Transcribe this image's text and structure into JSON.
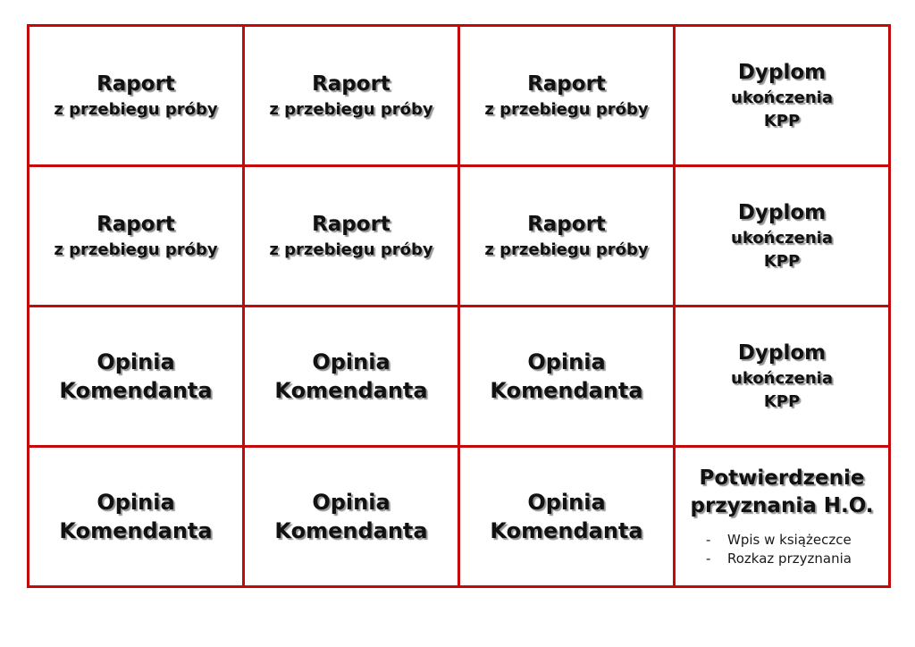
{
  "page": {
    "background": "#ffffff",
    "border_color": "#c4090a"
  },
  "grid": {
    "rows": [
      {
        "cells": [
          {
            "lines": [
              "Raport",
              "z przebiegu próby"
            ]
          },
          {
            "lines": [
              "Raport",
              "z przebiegu próby"
            ]
          },
          {
            "lines": [
              "Raport",
              "z przebiegu próby"
            ]
          },
          {
            "lines": [
              "Dyplom",
              "ukończenia",
              "KPP"
            ]
          }
        ]
      },
      {
        "cells": [
          {
            "lines": [
              "Raport",
              "z przebiegu próby"
            ]
          },
          {
            "lines": [
              "Raport",
              "z przebiegu próby"
            ]
          },
          {
            "lines": [
              "Raport",
              "z przebiegu próby"
            ]
          },
          {
            "lines": [
              "Dyplom",
              "ukończenia",
              "KPP"
            ]
          }
        ]
      },
      {
        "cells": [
          {
            "lines": [
              "Opinia",
              "Komendanta"
            ]
          },
          {
            "lines": [
              "Opinia",
              "Komendanta"
            ]
          },
          {
            "lines": [
              "Opinia",
              "Komendanta"
            ]
          },
          {
            "lines": [
              "Dyplom",
              "ukończenia",
              "KPP"
            ]
          }
        ]
      },
      {
        "cells": [
          {
            "lines": [
              "Opinia",
              "Komendanta"
            ]
          },
          {
            "lines": [
              "Opinia",
              "Komendanta"
            ]
          },
          {
            "lines": [
              "Opinia",
              "Komendanta"
            ]
          },
          {
            "lines": [
              "Potwierdzenie",
              "przyznania H.O."
            ],
            "list": [
              {
                "marker": "-",
                "text": "Wpis w książeczce"
              },
              {
                "marker": "-",
                "text": "Rozkaz przyznania"
              }
            ]
          }
        ]
      }
    ]
  }
}
